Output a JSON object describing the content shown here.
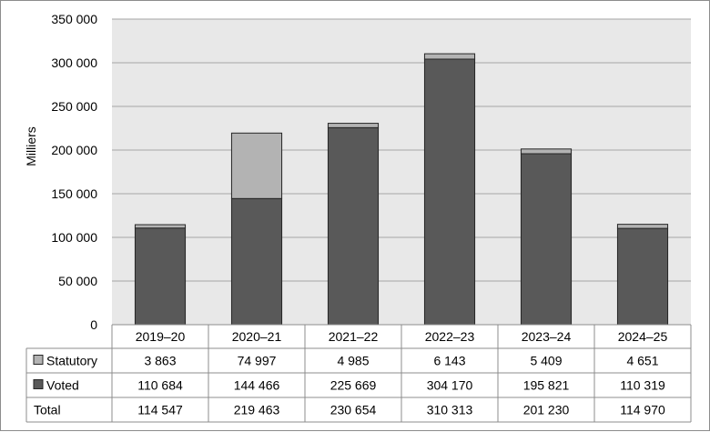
{
  "chart_data": {
    "type": "bar",
    "stacked": true,
    "ylabel": "Milliers",
    "ylim": [
      0,
      350000
    ],
    "yticks": [
      0,
      50000,
      100000,
      150000,
      200000,
      250000,
      300000,
      350000
    ],
    "ytick_labels": [
      "0",
      "50 000",
      "100 000",
      "150 000",
      "200 000",
      "250 000",
      "300 000",
      "350 000"
    ],
    "grid": true,
    "categories": [
      "2019–20",
      "2020–21",
      "2021–22",
      "2022–23",
      "2023–24",
      "2024–25"
    ],
    "series": [
      {
        "name": "Voted",
        "color": "#595959",
        "values": [
          110684,
          144466,
          225669,
          304170,
          195821,
          110319
        ],
        "value_labels": [
          "110 684",
          "144 466",
          "225 669",
          "304 170",
          "195 821",
          "110 319"
        ]
      },
      {
        "name": "Statutory",
        "color": "#b3b3b3",
        "values": [
          3863,
          74997,
          4985,
          6143,
          5409,
          4651
        ],
        "value_labels": [
          "3 863",
          "74 997",
          "4 985",
          "6 143",
          "5 409",
          "4 651"
        ]
      }
    ],
    "data_table": {
      "row_order": [
        "Statutory",
        "Voted",
        "Total"
      ],
      "total_label": "Total",
      "totals": [
        114547,
        219463,
        230654,
        310313,
        201230,
        114970
      ],
      "total_labels": [
        "114 547",
        "219 463",
        "230 654",
        "310 313",
        "201 230",
        "114 970"
      ]
    },
    "colors": {
      "plot_background": "#e8e8e8",
      "gridline": "#a6a6a6",
      "bar_edge": "#262626"
    }
  }
}
